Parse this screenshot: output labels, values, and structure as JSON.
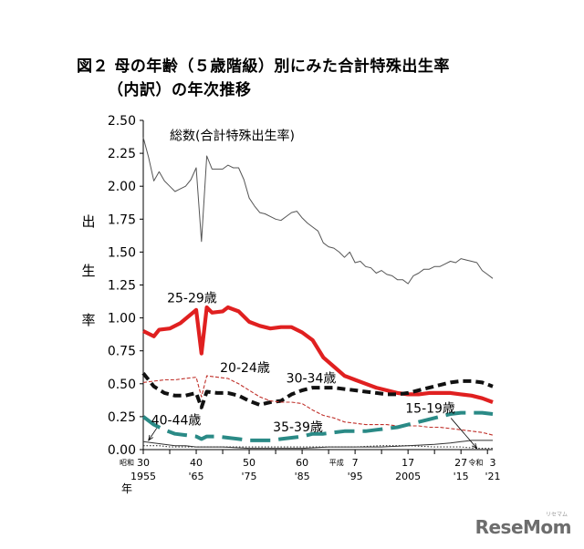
{
  "title": {
    "line1": "図２ 母の年齢（５歳階級）別にみた合計特殊出生率",
    "line2": "（内訳）の年次推移"
  },
  "brand": {
    "name": "ReseMom",
    "tagline": "リセマム"
  },
  "chart_data": {
    "type": "line",
    "ylabel_chars": [
      "出",
      "生",
      "率"
    ],
    "xlabel_era": "昭和",
    "xlabel_year": "年",
    "ylim": [
      0,
      2.5
    ],
    "xlim": [
      1955,
      2021
    ],
    "yticks": [
      0,
      0.25,
      0.5,
      0.75,
      1.0,
      1.25,
      1.5,
      1.75,
      2.0,
      2.25,
      2.5
    ],
    "ytick_labels": [
      "0.00",
      "0.25",
      "0.50",
      "0.75",
      "1.00",
      "1.25",
      "1.50",
      "1.75",
      "2.00",
      "2.25",
      "2.50"
    ],
    "xticks_top": [
      {
        "x": 1955,
        "label": "30"
      },
      {
        "x": 1965,
        "label": "40"
      },
      {
        "x": 1975,
        "label": "50"
      },
      {
        "x": 1985,
        "label": "60"
      },
      {
        "x": 1995,
        "label": "7"
      },
      {
        "x": 2005,
        "label": "17"
      },
      {
        "x": 2015,
        "label": "27"
      },
      {
        "x": 2021,
        "label": "3"
      }
    ],
    "era_labels": [
      {
        "x": 1991.5,
        "label": "平成"
      },
      {
        "x": 2017.8,
        "label": "令和"
      }
    ],
    "xticks_bottom": [
      {
        "x": 1955,
        "label": "1955"
      },
      {
        "x": 1965,
        "label": "'65"
      },
      {
        "x": 1975,
        "label": "'75"
      },
      {
        "x": 1985,
        "label": "'85"
      },
      {
        "x": 1995,
        "label": "'95"
      },
      {
        "x": 2005,
        "label": "2005"
      },
      {
        "x": 2015,
        "label": "'15"
      },
      {
        "x": 2021,
        "label": "'21"
      }
    ],
    "series": [
      {
        "name": "総数(合計特殊出生率)",
        "color": "#555555",
        "style": "thin",
        "label_at": [
          1960,
          2.35
        ],
        "points": [
          [
            1955,
            2.37
          ],
          [
            1956,
            2.22
          ],
          [
            1957,
            2.04
          ],
          [
            1958,
            2.11
          ],
          [
            1959,
            2.04
          ],
          [
            1960,
            2.0
          ],
          [
            1961,
            1.96
          ],
          [
            1962,
            1.98
          ],
          [
            1963,
            2.0
          ],
          [
            1964,
            2.05
          ],
          [
            1965,
            2.14
          ],
          [
            1966,
            1.58
          ],
          [
            1967,
            2.23
          ],
          [
            1968,
            2.13
          ],
          [
            1969,
            2.13
          ],
          [
            1970,
            2.13
          ],
          [
            1971,
            2.16
          ],
          [
            1972,
            2.14
          ],
          [
            1973,
            2.14
          ],
          [
            1974,
            2.05
          ],
          [
            1975,
            1.91
          ],
          [
            1976,
            1.85
          ],
          [
            1977,
            1.8
          ],
          [
            1978,
            1.79
          ],
          [
            1979,
            1.77
          ],
          [
            1980,
            1.75
          ],
          [
            1981,
            1.74
          ],
          [
            1982,
            1.77
          ],
          [
            1983,
            1.8
          ],
          [
            1984,
            1.81
          ],
          [
            1985,
            1.76
          ],
          [
            1986,
            1.72
          ],
          [
            1987,
            1.69
          ],
          [
            1988,
            1.66
          ],
          [
            1989,
            1.57
          ],
          [
            1990,
            1.54
          ],
          [
            1991,
            1.53
          ],
          [
            1992,
            1.5
          ],
          [
            1993,
            1.46
          ],
          [
            1994,
            1.5
          ],
          [
            1995,
            1.42
          ],
          [
            1996,
            1.43
          ],
          [
            1997,
            1.39
          ],
          [
            1998,
            1.38
          ],
          [
            1999,
            1.34
          ],
          [
            2000,
            1.36
          ],
          [
            2001,
            1.33
          ],
          [
            2002,
            1.32
          ],
          [
            2003,
            1.29
          ],
          [
            2004,
            1.29
          ],
          [
            2005,
            1.26
          ],
          [
            2006,
            1.32
          ],
          [
            2007,
            1.34
          ],
          [
            2008,
            1.37
          ],
          [
            2009,
            1.37
          ],
          [
            2010,
            1.39
          ],
          [
            2011,
            1.39
          ],
          [
            2012,
            1.41
          ],
          [
            2013,
            1.43
          ],
          [
            2014,
            1.42
          ],
          [
            2015,
            1.45
          ],
          [
            2016,
            1.44
          ],
          [
            2017,
            1.43
          ],
          [
            2018,
            1.42
          ],
          [
            2019,
            1.36
          ],
          [
            2020,
            1.33
          ],
          [
            2021,
            1.3
          ]
        ]
      },
      {
        "name": "25-29歳",
        "color": "#e02020",
        "style": "thick",
        "label_at": [
          1959.5,
          1.12
        ],
        "points": [
          [
            1955,
            0.9
          ],
          [
            1957,
            0.86
          ],
          [
            1958,
            0.91
          ],
          [
            1960,
            0.92
          ],
          [
            1962,
            0.96
          ],
          [
            1965,
            1.06
          ],
          [
            1966,
            0.73
          ],
          [
            1967,
            1.08
          ],
          [
            1968,
            1.04
          ],
          [
            1970,
            1.05
          ],
          [
            1971,
            1.08
          ],
          [
            1973,
            1.05
          ],
          [
            1975,
            0.97
          ],
          [
            1977,
            0.94
          ],
          [
            1979,
            0.92
          ],
          [
            1981,
            0.93
          ],
          [
            1983,
            0.93
          ],
          [
            1985,
            0.89
          ],
          [
            1987,
            0.83
          ],
          [
            1989,
            0.7
          ],
          [
            1991,
            0.63
          ],
          [
            1993,
            0.56
          ],
          [
            1995,
            0.53
          ],
          [
            1997,
            0.5
          ],
          [
            1999,
            0.47
          ],
          [
            2001,
            0.45
          ],
          [
            2003,
            0.43
          ],
          [
            2005,
            0.42
          ],
          [
            2007,
            0.42
          ],
          [
            2009,
            0.43
          ],
          [
            2011,
            0.43
          ],
          [
            2013,
            0.43
          ],
          [
            2015,
            0.42
          ],
          [
            2017,
            0.41
          ],
          [
            2019,
            0.39
          ],
          [
            2021,
            0.36
          ]
        ]
      },
      {
        "name": "30-34歳",
        "color": "#111111",
        "style": "dashed-thick",
        "label_at": [
          1982,
          0.51
        ],
        "points": [
          [
            1955,
            0.58
          ],
          [
            1957,
            0.48
          ],
          [
            1959,
            0.43
          ],
          [
            1961,
            0.41
          ],
          [
            1963,
            0.41
          ],
          [
            1965,
            0.43
          ],
          [
            1966,
            0.32
          ],
          [
            1967,
            0.44
          ],
          [
            1969,
            0.43
          ],
          [
            1971,
            0.43
          ],
          [
            1973,
            0.41
          ],
          [
            1975,
            0.37
          ],
          [
            1977,
            0.34
          ],
          [
            1979,
            0.36
          ],
          [
            1981,
            0.37
          ],
          [
            1983,
            0.42
          ],
          [
            1985,
            0.45
          ],
          [
            1987,
            0.47
          ],
          [
            1989,
            0.47
          ],
          [
            1991,
            0.47
          ],
          [
            1993,
            0.46
          ],
          [
            1995,
            0.45
          ],
          [
            1997,
            0.44
          ],
          [
            1999,
            0.43
          ],
          [
            2001,
            0.42
          ],
          [
            2003,
            0.42
          ],
          [
            2005,
            0.43
          ],
          [
            2007,
            0.45
          ],
          [
            2009,
            0.47
          ],
          [
            2011,
            0.49
          ],
          [
            2013,
            0.51
          ],
          [
            2015,
            0.52
          ],
          [
            2017,
            0.52
          ],
          [
            2019,
            0.51
          ],
          [
            2021,
            0.48
          ]
        ]
      },
      {
        "name": "20-24歳",
        "color": "#c0302a",
        "style": "thin-dashed",
        "label_at": [
          1969.5,
          0.59
        ],
        "points": [
          [
            1955,
            0.51
          ],
          [
            1957,
            0.52
          ],
          [
            1959,
            0.53
          ],
          [
            1961,
            0.53
          ],
          [
            1963,
            0.54
          ],
          [
            1965,
            0.55
          ],
          [
            1966,
            0.4
          ],
          [
            1967,
            0.56
          ],
          [
            1969,
            0.55
          ],
          [
            1971,
            0.54
          ],
          [
            1973,
            0.5
          ],
          [
            1975,
            0.45
          ],
          [
            1977,
            0.4
          ],
          [
            1979,
            0.37
          ],
          [
            1981,
            0.36
          ],
          [
            1983,
            0.36
          ],
          [
            1985,
            0.35
          ],
          [
            1987,
            0.3
          ],
          [
            1989,
            0.26
          ],
          [
            1991,
            0.24
          ],
          [
            1993,
            0.21
          ],
          [
            1995,
            0.2
          ],
          [
            1997,
            0.19
          ],
          [
            1999,
            0.19
          ],
          [
            2001,
            0.19
          ],
          [
            2003,
            0.18
          ],
          [
            2005,
            0.18
          ],
          [
            2007,
            0.18
          ],
          [
            2009,
            0.17
          ],
          [
            2011,
            0.17
          ],
          [
            2013,
            0.16
          ],
          [
            2015,
            0.15
          ],
          [
            2017,
            0.14
          ],
          [
            2019,
            0.13
          ],
          [
            2021,
            0.11
          ]
        ]
      },
      {
        "name": "35-39歳",
        "color": "#2a8a86",
        "style": "long-dashed",
        "label_at": [
          1979.5,
          0.14
        ],
        "points": [
          [
            1955,
            0.25
          ],
          [
            1957,
            0.19
          ],
          [
            1959,
            0.15
          ],
          [
            1961,
            0.12
          ],
          [
            1963,
            0.11
          ],
          [
            1965,
            0.1
          ],
          [
            1966,
            0.08
          ],
          [
            1967,
            0.1
          ],
          [
            1969,
            0.1
          ],
          [
            1971,
            0.09
          ],
          [
            1973,
            0.08
          ],
          [
            1975,
            0.07
          ],
          [
            1977,
            0.07
          ],
          [
            1979,
            0.07
          ],
          [
            1981,
            0.08
          ],
          [
            1983,
            0.09
          ],
          [
            1985,
            0.1
          ],
          [
            1987,
            0.12
          ],
          [
            1989,
            0.12
          ],
          [
            1991,
            0.13
          ],
          [
            1993,
            0.14
          ],
          [
            1995,
            0.14
          ],
          [
            1997,
            0.14
          ],
          [
            1999,
            0.15
          ],
          [
            2001,
            0.16
          ],
          [
            2003,
            0.17
          ],
          [
            2005,
            0.19
          ],
          [
            2007,
            0.21
          ],
          [
            2009,
            0.23
          ],
          [
            2011,
            0.25
          ],
          [
            2013,
            0.27
          ],
          [
            2015,
            0.28
          ],
          [
            2017,
            0.28
          ],
          [
            2019,
            0.28
          ],
          [
            2021,
            0.27
          ]
        ]
      },
      {
        "name": "40-44歳",
        "color": "#333333",
        "style": "thin",
        "label_at": [
          1956.5,
          0.19
        ],
        "arrow_to": [
          1956,
          0.07
        ],
        "points": [
          [
            1955,
            0.06
          ],
          [
            1957,
            0.05
          ],
          [
            1959,
            0.04
          ],
          [
            1961,
            0.03
          ],
          [
            1963,
            0.03
          ],
          [
            1965,
            0.02
          ],
          [
            1967,
            0.02
          ],
          [
            1970,
            0.02
          ],
          [
            1975,
            0.01
          ],
          [
            1980,
            0.01
          ],
          [
            1985,
            0.01
          ],
          [
            1990,
            0.02
          ],
          [
            1995,
            0.02
          ],
          [
            2000,
            0.02
          ],
          [
            2005,
            0.03
          ],
          [
            2010,
            0.04
          ],
          [
            2013,
            0.05
          ],
          [
            2015,
            0.06
          ],
          [
            2017,
            0.07
          ],
          [
            2019,
            0.07
          ],
          [
            2021,
            0.07
          ]
        ]
      },
      {
        "name": "15-19歳",
        "color": "#333333",
        "style": "thin-dotted",
        "label_at": [
          2004.5,
          0.28
        ],
        "arrow_to": [
          2018,
          0.01
        ],
        "points": [
          [
            1955,
            0.03
          ],
          [
            1958,
            0.03
          ],
          [
            1960,
            0.02
          ],
          [
            1965,
            0.02
          ],
          [
            1970,
            0.02
          ],
          [
            1975,
            0.02
          ],
          [
            1980,
            0.02
          ],
          [
            1985,
            0.02
          ],
          [
            1990,
            0.02
          ],
          [
            1995,
            0.02
          ],
          [
            2000,
            0.03
          ],
          [
            2003,
            0.03
          ],
          [
            2005,
            0.03
          ],
          [
            2010,
            0.02
          ],
          [
            2015,
            0.02
          ],
          [
            2018,
            0.01
          ],
          [
            2021,
            0.01
          ]
        ]
      }
    ]
  }
}
